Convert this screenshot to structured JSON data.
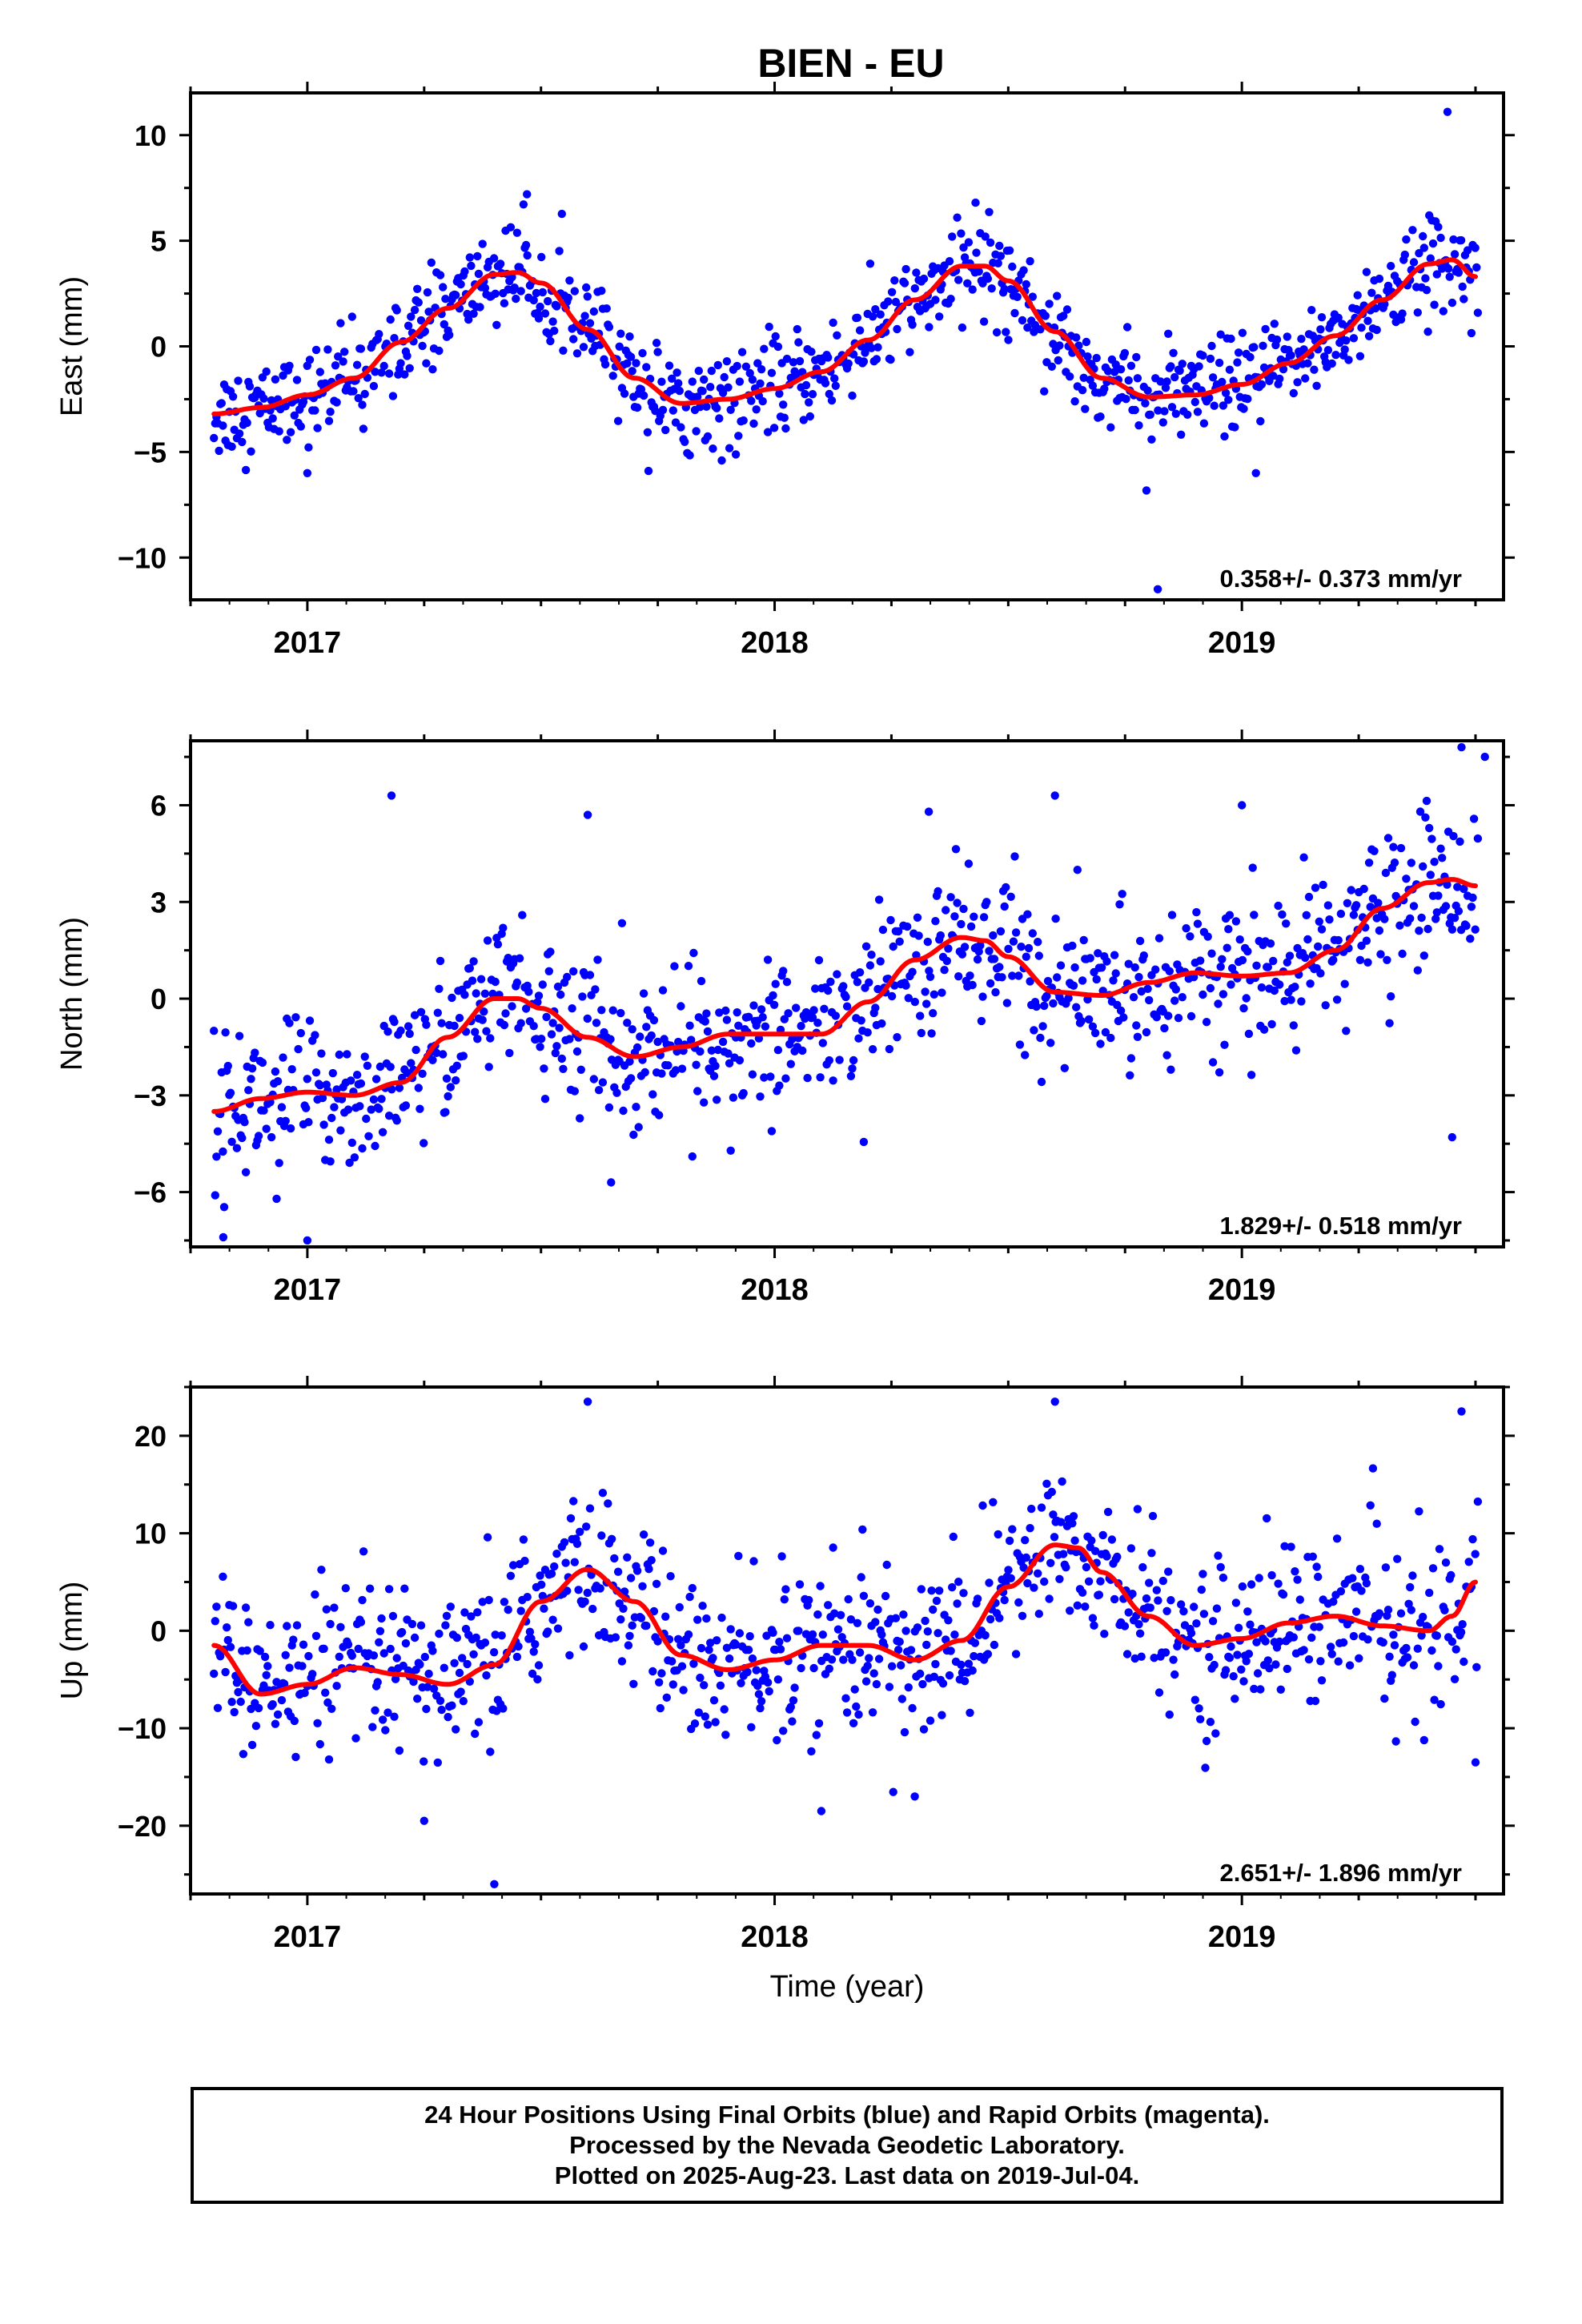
{
  "title": "BIEN - EU",
  "footer": {
    "line1": "24 Hour Positions Using Final Orbits (blue) and Rapid Orbits (magenta).",
    "line2": "Processed by the Nevada Geodetic Laboratory.",
    "line3": "Plotted on 2025-Aug-23. Last data on 2019-Jul-04."
  },
  "colors": {
    "data_points": "#0000ff",
    "fit_curve": "#ff0000",
    "frame": "#000000"
  },
  "chart_data": [
    {
      "type": "scatter",
      "ylabel": "East (mm)",
      "xlabel": "",
      "rate_text": "0.358+/- 0.373 mm/yr",
      "xlim": [
        2016.75,
        2019.56
      ],
      "ylim": [
        -12,
        12
      ],
      "yticks": [
        -10,
        -5,
        0,
        5,
        10
      ],
      "yminor": 2.5,
      "xticks": [
        2017,
        2018,
        2019
      ],
      "xtick_labels": [
        "2017",
        "2018",
        "2019"
      ],
      "xminor": 0.25,
      "fit_x": [
        2016.8,
        2016.9,
        2017.0,
        2017.1,
        2017.2,
        2017.3,
        2017.4,
        2017.45,
        2017.5,
        2017.6,
        2017.7,
        2017.8,
        2017.9,
        2018.0,
        2018.1,
        2018.2,
        2018.3,
        2018.4,
        2018.45,
        2018.5,
        2018.6,
        2018.7,
        2018.8,
        2018.9,
        2019.0,
        2019.1,
        2019.2,
        2019.3,
        2019.4,
        2019.45,
        2019.5
      ],
      "fit_y": [
        -3.2,
        -2.9,
        -2.3,
        -1.5,
        0.2,
        1.8,
        3.4,
        3.5,
        3.0,
        0.8,
        -1.5,
        -2.7,
        -2.5,
        -2.0,
        -1.2,
        0.3,
        2.2,
        3.8,
        3.8,
        3.1,
        0.7,
        -1.5,
        -2.4,
        -2.3,
        -1.8,
        -0.8,
        0.5,
        2.2,
        3.9,
        4.1,
        3.3
      ],
      "noise": 1.1,
      "outliers": [
        [
          2019.44,
          11.1
        ],
        [
          2018.82,
          -11.5
        ],
        [
          2017.0,
          -6.0
        ],
        [
          2017.73,
          -5.9
        ],
        [
          2019.03,
          -6.0
        ],
        [
          2017.12,
          -3.9
        ],
        [
          2017.47,
          7.2
        ],
        [
          2018.43,
          6.8
        ]
      ]
    },
    {
      "type": "scatter",
      "ylabel": "North (mm)",
      "xlabel": "",
      "rate_text": "1.829+/- 0.518 mm/yr",
      "xlim": [
        2016.75,
        2019.56
      ],
      "ylim": [
        -7.7,
        8.0
      ],
      "yticks": [
        -6,
        -3,
        0,
        3,
        6
      ],
      "yminor": 1.5,
      "xticks": [
        2017,
        2018,
        2019
      ],
      "xtick_labels": [
        "2017",
        "2018",
        "2019"
      ],
      "xminor": 0.25,
      "fit_x": [
        2016.8,
        2016.9,
        2017.0,
        2017.1,
        2017.2,
        2017.3,
        2017.4,
        2017.45,
        2017.5,
        2017.6,
        2017.7,
        2017.8,
        2017.9,
        2018.0,
        2018.1,
        2018.2,
        2018.3,
        2018.4,
        2018.45,
        2018.5,
        2018.6,
        2018.7,
        2018.8,
        2018.9,
        2019.0,
        2019.1,
        2019.2,
        2019.3,
        2019.4,
        2019.45,
        2019.5
      ],
      "fit_y": [
        -3.5,
        -3.1,
        -2.9,
        -3.0,
        -2.6,
        -1.2,
        0.0,
        0.0,
        -0.3,
        -1.2,
        -1.8,
        -1.5,
        -1.1,
        -1.1,
        -1.1,
        -0.1,
        1.2,
        1.9,
        1.8,
        1.3,
        0.2,
        0.1,
        0.5,
        0.8,
        0.7,
        0.8,
        1.5,
        2.8,
        3.6,
        3.7,
        3.5
      ],
      "noise": 1.15,
      "outliers": [
        [
          2017.18,
          6.3
        ],
        [
          2018.6,
          6.3
        ],
        [
          2017.6,
          5.7
        ],
        [
          2019.47,
          7.8
        ],
        [
          2019.52,
          7.5
        ],
        [
          2016.82,
          -7.4
        ],
        [
          2017.0,
          -7.5
        ],
        [
          2018.33,
          5.8
        ],
        [
          2019.45,
          -4.3
        ],
        [
          2017.65,
          -5.7
        ],
        [
          2019.0,
          6.0
        ]
      ]
    },
    {
      "type": "scatter",
      "ylabel": "Up (mm)",
      "xlabel": "Time (year)",
      "rate_text": "2.651+/- 1.896 mm/yr",
      "xlim": [
        2016.75,
        2019.56
      ],
      "ylim": [
        -27,
        25
      ],
      "yticks": [
        -20,
        -10,
        0,
        10,
        20
      ],
      "yminor": 5,
      "xticks": [
        2017,
        2018,
        2019
      ],
      "xtick_labels": [
        "2017",
        "2018",
        "2019"
      ],
      "xminor": 0.25,
      "fit_x": [
        2016.8,
        2016.9,
        2017.0,
        2017.1,
        2017.2,
        2017.3,
        2017.4,
        2017.5,
        2017.6,
        2017.7,
        2017.8,
        2017.9,
        2018.0,
        2018.1,
        2018.2,
        2018.3,
        2018.4,
        2018.5,
        2018.6,
        2018.65,
        2018.7,
        2018.8,
        2018.9,
        2019.0,
        2019.1,
        2019.2,
        2019.3,
        2019.4,
        2019.45,
        2019.5
      ],
      "fit_y": [
        -1.5,
        -6.5,
        -5.5,
        -3.8,
        -4.5,
        -5.5,
        -3.5,
        3.0,
        6.3,
        3.0,
        -2.5,
        -4.0,
        -3.0,
        -1.5,
        -1.5,
        -3.0,
        -1.0,
        4.5,
        8.8,
        8.5,
        6.0,
        1.5,
        -1.5,
        -0.8,
        0.8,
        1.5,
        0.5,
        0.0,
        1.5,
        5.0
      ],
      "noise": 4.2,
      "outliers": [
        [
          2017.6,
          23.5
        ],
        [
          2018.6,
          23.5
        ],
        [
          2017.4,
          -26.0
        ],
        [
          2018.1,
          -18.5
        ],
        [
          2018.3,
          -17.0
        ],
        [
          2019.47,
          22.5
        ],
        [
          2017.25,
          -19.5
        ],
        [
          2019.5,
          -13.5
        ]
      ]
    }
  ]
}
